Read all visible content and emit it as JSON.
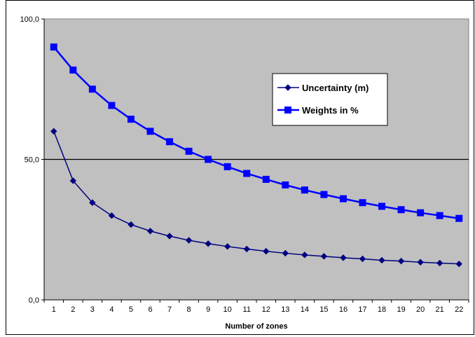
{
  "chart_data": {
    "type": "line",
    "title": "",
    "xlabel": "Number of zones",
    "ylabel": "",
    "categories": [
      "1",
      "2",
      "3",
      "4",
      "5",
      "6",
      "7",
      "8",
      "9",
      "10",
      "11",
      "12",
      "13",
      "14",
      "15",
      "16",
      "17",
      "18",
      "19",
      "20",
      "21",
      "22"
    ],
    "ylim": [
      0,
      100
    ],
    "yticks": [
      0,
      50,
      100
    ],
    "ytick_labels": [
      "0,0",
      "50,0",
      "100,0"
    ],
    "grid": "single horizontal line at 50",
    "plot_background": "#c0c0c0",
    "legend_position": "right",
    "series": [
      {
        "name": "Uncertainty (m)",
        "color": "#000080",
        "marker": "diamond",
        "values": [
          60.0,
          42.4,
          34.6,
          30.0,
          26.8,
          24.5,
          22.7,
          21.2,
          20.0,
          19.0,
          18.1,
          17.3,
          16.6,
          16.0,
          15.5,
          15.0,
          14.6,
          14.1,
          13.8,
          13.4,
          13.1,
          12.8
        ]
      },
      {
        "name": "Weights in %",
        "color": "#0000ff",
        "marker": "square",
        "values": [
          90.0,
          81.8,
          75.0,
          69.2,
          64.3,
          60.0,
          56.3,
          52.9,
          50.0,
          47.4,
          45.0,
          42.9,
          40.9,
          39.1,
          37.5,
          36.0,
          34.6,
          33.3,
          32.1,
          31.0,
          30.0,
          29.0
        ]
      }
    ]
  }
}
